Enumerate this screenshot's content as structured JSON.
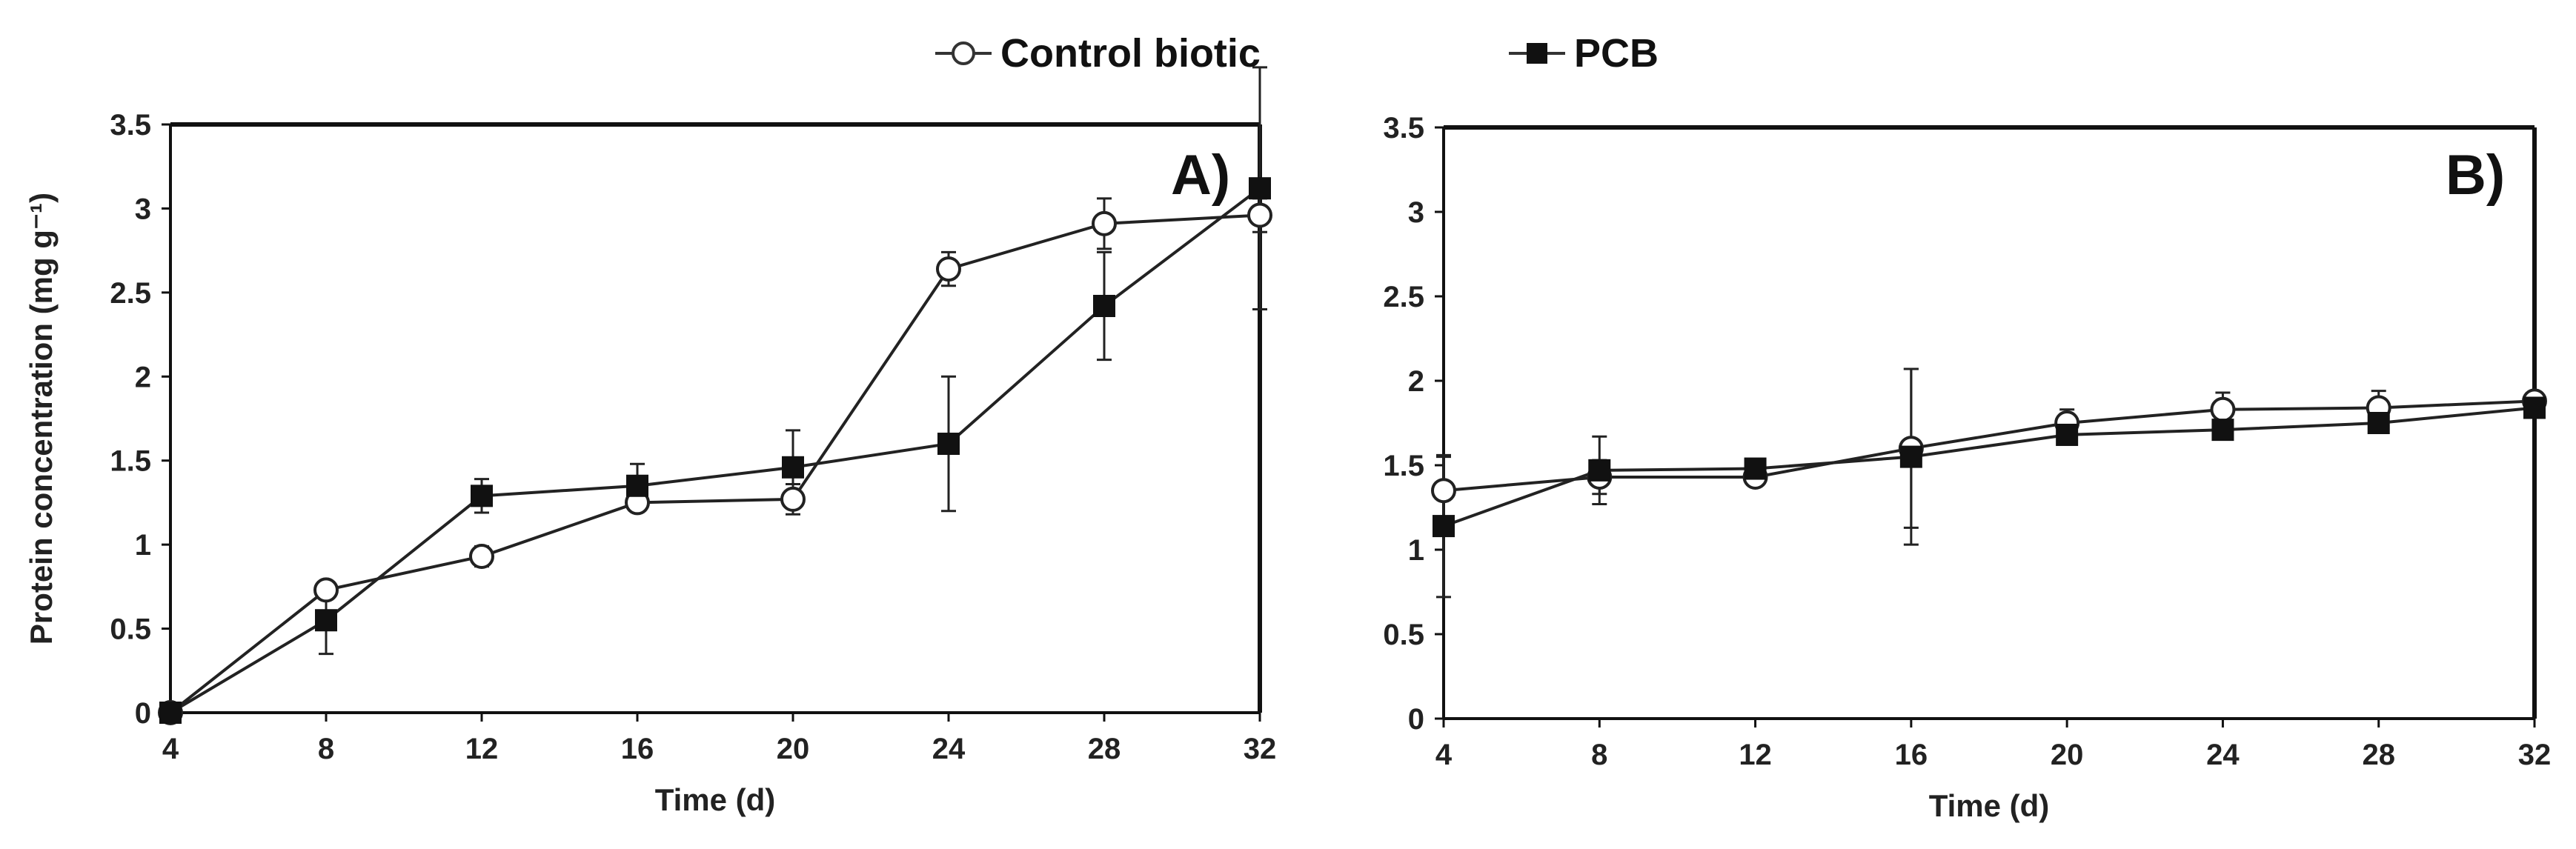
{
  "legend": {
    "control_label": "Control biotic",
    "pcb_label": "PCB"
  },
  "chart_data": [
    {
      "type": "line",
      "panel_label": "A)",
      "xlabel": "Time (d)",
      "ylabel": "Protein concentration (mg g⁻¹)",
      "x": [
        4,
        8,
        12,
        16,
        20,
        24,
        28,
        32
      ],
      "xticks": [
        4,
        8,
        12,
        16,
        20,
        24,
        28,
        32
      ],
      "yticks": [
        0,
        0.5,
        1,
        1.5,
        2,
        2.5,
        3,
        3.5
      ],
      "ytick_labels": [
        "0",
        "0.5",
        "1",
        "1.5",
        "2",
        "2.5",
        "3",
        "3.5"
      ],
      "xlim": [
        4,
        32
      ],
      "ylim": [
        0,
        3.5
      ],
      "series": [
        {
          "name": "Control biotic",
          "marker": "open-circle",
          "values": [
            0,
            0.73,
            0.93,
            1.25,
            1.27,
            2.64,
            2.91,
            2.96
          ],
          "errors": [
            0,
            0,
            0.06,
            0.03,
            0.09,
            0.1,
            0.15,
            0.1
          ]
        },
        {
          "name": "PCB",
          "marker": "filled-square",
          "values": [
            0,
            0.55,
            1.29,
            1.35,
            1.46,
            1.6,
            2.42,
            3.12
          ],
          "errors": [
            0,
            0.2,
            0.1,
            0.13,
            0.22,
            0.4,
            0.32,
            0.72
          ]
        }
      ]
    },
    {
      "type": "line",
      "panel_label": "B)",
      "xlabel": "Time (d)",
      "ylabel": "",
      "x": [
        4,
        8,
        12,
        16,
        20,
        24,
        28,
        32
      ],
      "xticks": [
        4,
        8,
        12,
        16,
        20,
        24,
        28,
        32
      ],
      "yticks": [
        0,
        0.5,
        1,
        1.5,
        2,
        2.5,
        3,
        3.5
      ],
      "ytick_labels": [
        "0",
        "0.5",
        "1",
        "1.5",
        "2",
        "2.5",
        "3",
        "3.5"
      ],
      "xlim": [
        4,
        32
      ],
      "ylim": [
        0,
        3.5
      ],
      "series": [
        {
          "name": "Control biotic",
          "marker": "open-circle",
          "values": [
            1.35,
            1.43,
            1.43,
            1.6,
            1.75,
            1.83,
            1.84,
            1.88
          ],
          "errors": [
            0.2,
            0.1,
            0.03,
            0.47,
            0.08,
            0.1,
            0.1,
            0.04
          ]
        },
        {
          "name": "PCB",
          "marker": "filled-square",
          "values": [
            1.14,
            1.47,
            1.48,
            1.55,
            1.68,
            1.71,
            1.75,
            1.84
          ],
          "errors": [
            0.42,
            0.2,
            0.03,
            0.52,
            0.05,
            0.05,
            0.05,
            0.05
          ]
        }
      ]
    }
  ]
}
